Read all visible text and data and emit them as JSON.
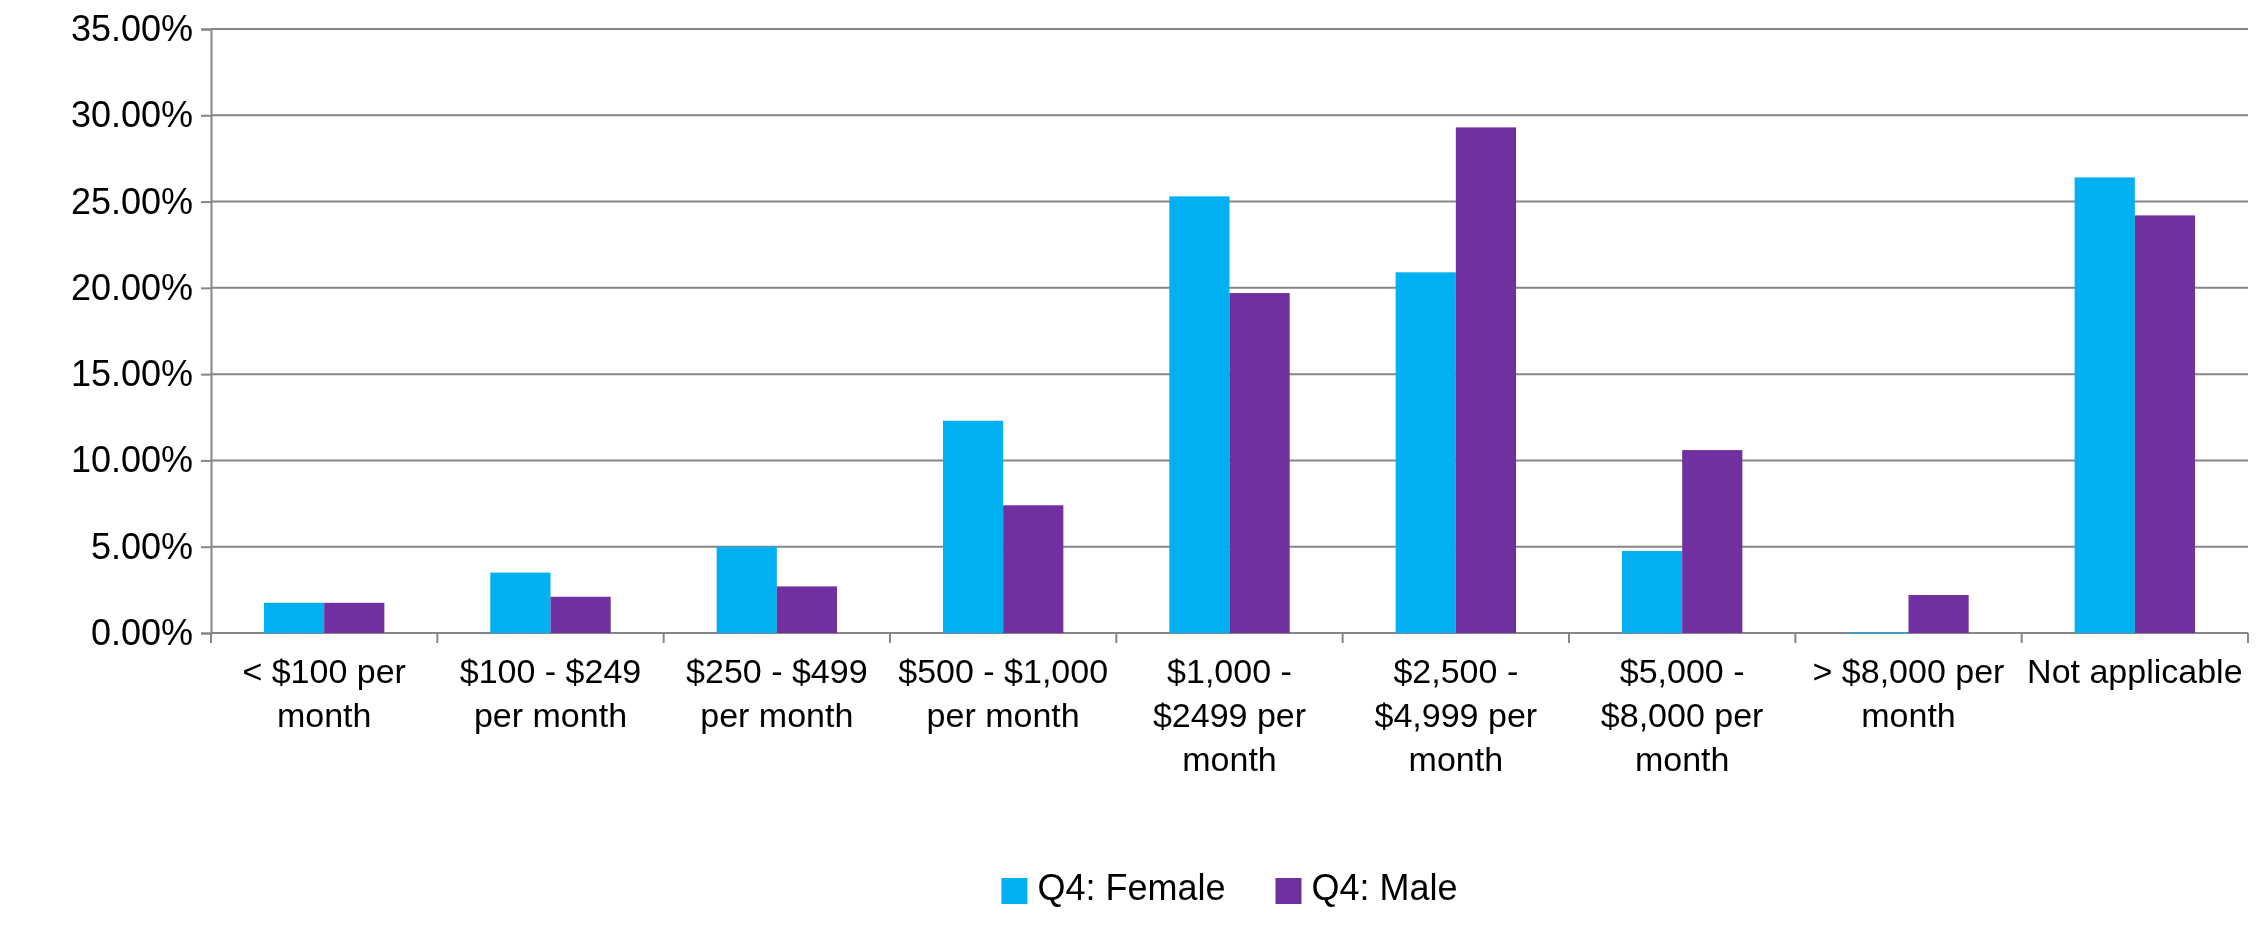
{
  "chart_data": {
    "type": "bar",
    "categories": [
      "< $100 per month",
      "$100 - $249 per month",
      "$250 - $499 per month",
      "$500 - $1,000 per month",
      "$1,000 - $2499 per month",
      "$2,500 - $4,999 per month",
      "$5,000 - $8,000 per month",
      "> $8,000 per month",
      "Not applicable"
    ],
    "series": [
      {
        "name": "Q4: Female",
        "color": "#00b0f0",
        "values": [
          1.75,
          3.5,
          5.0,
          12.3,
          25.3,
          20.9,
          4.75,
          0.05,
          26.4
        ]
      },
      {
        "name": "Q4: Male",
        "color": "#7030a0",
        "values": [
          1.75,
          2.1,
          2.7,
          7.4,
          19.7,
          29.3,
          10.6,
          2.2,
          24.2
        ]
      }
    ],
    "ylim": [
      0,
      35
    ],
    "yticks": [
      {
        "value": 0,
        "label": "0.00%"
      },
      {
        "value": 5,
        "label": "5.00%"
      },
      {
        "value": 10,
        "label": "10.00%"
      },
      {
        "value": 15,
        "label": "15.00%"
      },
      {
        "value": 20,
        "label": "20.00%"
      },
      {
        "value": 25,
        "label": "25.00%"
      },
      {
        "value": 30,
        "label": "30.00%"
      },
      {
        "value": 35,
        "label": "35.00%"
      }
    ],
    "grid": "y",
    "legend": "bottom"
  }
}
